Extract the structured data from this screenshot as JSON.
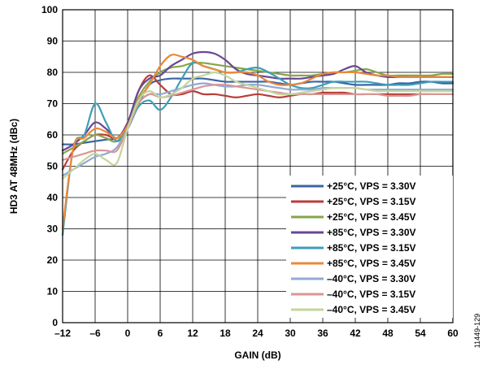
{
  "figure_id": "11449-129",
  "chart_data": {
    "type": "line",
    "xlabel": "GAIN (dB)",
    "ylabel": "HD3 AT 48MHz (dBc)",
    "xlim": [
      -12,
      60
    ],
    "ylim": [
      0,
      100
    ],
    "xticks": [
      -12,
      -6,
      0,
      6,
      12,
      18,
      24,
      30,
      36,
      42,
      48,
      54,
      60
    ],
    "xtick_labels": [
      "–12",
      "–6",
      "0",
      "6",
      "12",
      "18",
      "24",
      "30",
      "36",
      "42",
      "48",
      "54",
      "60"
    ],
    "yticks": [
      0,
      10,
      20,
      30,
      40,
      50,
      60,
      70,
      80,
      90,
      100
    ],
    "ytick_labels": [
      "0",
      "10",
      "20",
      "30",
      "40",
      "50",
      "60",
      "70",
      "80",
      "90",
      "100"
    ],
    "grid": true,
    "legend_position": "bottom-right",
    "series": [
      {
        "name": "+25°C, VPS = 3.30V",
        "color": "#3c64a5",
        "x": [
          -12,
          -10,
          -8,
          -6,
          -4,
          -2,
          0,
          2,
          4,
          6,
          8,
          10,
          12,
          14,
          16,
          18,
          20,
          22,
          24,
          26,
          28,
          30,
          32,
          34,
          36,
          38,
          40,
          42,
          44,
          46,
          48,
          50,
          52,
          54,
          56,
          58,
          60
        ],
        "y": [
          57,
          57,
          57.5,
          58,
          58.5,
          59,
          62,
          70,
          76,
          77.5,
          78,
          78,
          78,
          78,
          77.5,
          77,
          77,
          77,
          77,
          77,
          76.5,
          76,
          76.5,
          77,
          77,
          77,
          76.5,
          76,
          76,
          76,
          76,
          76.5,
          76.5,
          77,
          77,
          76.5,
          76.5
        ]
      },
      {
        "name": "+25°C, VPS = 3.15V",
        "color": "#b83d3a",
        "x": [
          -12,
          -10,
          -8,
          -6,
          -4,
          -2,
          0,
          2,
          4,
          6,
          8,
          10,
          12,
          14,
          16,
          18,
          20,
          22,
          24,
          26,
          28,
          30,
          32,
          34,
          36,
          38,
          40,
          42,
          44,
          46,
          48,
          50,
          52,
          54,
          56,
          58,
          60
        ],
        "y": [
          49,
          55,
          58,
          60,
          60,
          59,
          63,
          74,
          79,
          76,
          73,
          73,
          74,
          73,
          73,
          72.5,
          72,
          72.5,
          73,
          72.5,
          72,
          72.5,
          73,
          73,
          73.5,
          73.5,
          73.5,
          73,
          73,
          73,
          73,
          73,
          73,
          73,
          73,
          73,
          73
        ]
      },
      {
        "name": "+25°C, VPS = 3.45V",
        "color": "#85a64a",
        "x": [
          -12,
          -10,
          -8,
          -6,
          -4,
          -2,
          0,
          2,
          4,
          6,
          8,
          10,
          12,
          14,
          16,
          18,
          20,
          22,
          24,
          26,
          28,
          30,
          32,
          34,
          36,
          38,
          40,
          42,
          44,
          46,
          48,
          50,
          52,
          54,
          56,
          58,
          60
        ],
        "y": [
          54,
          56,
          58,
          60,
          59,
          58,
          63,
          72,
          77,
          80,
          81.5,
          82,
          83,
          83,
          82.5,
          82,
          81.5,
          81,
          80.5,
          80,
          79.5,
          79,
          79,
          79,
          79.5,
          80,
          80,
          80.5,
          81,
          80,
          79,
          79,
          79,
          79,
          79,
          79.5,
          79.5
        ]
      },
      {
        "name": "+85°C, VPS = 3.30V",
        "color": "#6a4794",
        "x": [
          -12,
          -10,
          -8,
          -6,
          -4,
          -2,
          0,
          2,
          4,
          6,
          8,
          10,
          12,
          14,
          16,
          18,
          20,
          22,
          24,
          26,
          28,
          30,
          32,
          34,
          36,
          38,
          40,
          42,
          44,
          46,
          48,
          50,
          52,
          54,
          56,
          58,
          60
        ],
        "y": [
          55,
          57,
          60,
          64,
          62,
          59,
          64,
          74,
          78,
          79,
          82,
          84,
          86,
          86.5,
          86,
          84,
          81,
          79.5,
          79,
          78.5,
          78,
          78,
          78,
          78.5,
          79,
          79.5,
          81,
          82,
          80,
          79,
          78.5,
          78.5,
          78.5,
          78.5,
          78.5,
          78.5,
          78.5
        ]
      },
      {
        "name": "+85°C, VPS = 3.15V",
        "color": "#3d9fb8",
        "x": [
          -12,
          -10,
          -8,
          -6,
          -4,
          -2,
          0,
          2,
          4,
          6,
          8,
          10,
          12,
          14,
          16,
          18,
          20,
          22,
          24,
          26,
          28,
          30,
          32,
          34,
          36,
          38,
          40,
          42,
          44,
          46,
          48,
          50,
          52,
          54,
          56,
          58,
          60
        ],
        "y": [
          28,
          56,
          60,
          70,
          64,
          58,
          62,
          69,
          71,
          68,
          72,
          78,
          83,
          82,
          81,
          80,
          80,
          81,
          81.5,
          80,
          78,
          76,
          75,
          75,
          76,
          77,
          77,
          77,
          77,
          76.5,
          76,
          76,
          76,
          76.5,
          77,
          77,
          77
        ]
      },
      {
        "name": "+85°C, VPS = 3.45V",
        "color": "#e9893a",
        "x": [
          -12,
          -10,
          -8,
          -6,
          -4,
          -2,
          0,
          2,
          4,
          6,
          8,
          10,
          12,
          14,
          16,
          18,
          20,
          22,
          24,
          26,
          28,
          30,
          32,
          34,
          36,
          38,
          40,
          42,
          44,
          46,
          48,
          50,
          52,
          54,
          56,
          58,
          60
        ],
        "y": [
          30,
          56,
          59,
          62,
          61,
          59,
          63,
          71,
          76,
          82,
          85.5,
          85,
          84,
          82,
          81,
          80,
          80,
          80,
          79,
          77,
          76,
          76,
          76.5,
          78,
          79.5,
          80,
          80,
          80,
          79.5,
          79,
          79,
          78.5,
          78.5,
          78.5,
          78.5,
          78.5,
          78.5
        ]
      },
      {
        "name": "–40°C, VPS = 3.30V",
        "color": "#93a9d6",
        "x": [
          -12,
          -10,
          -8,
          -6,
          -4,
          -2,
          0,
          2,
          4,
          6,
          8,
          10,
          12,
          14,
          16,
          18,
          20,
          22,
          24,
          26,
          28,
          30,
          32,
          34,
          36,
          38,
          40,
          42,
          44,
          46,
          48,
          50,
          52,
          54,
          56,
          58,
          60
        ],
        "y": [
          47,
          49,
          51,
          53,
          54,
          56,
          62,
          70,
          73,
          73,
          74,
          75,
          76,
          76.5,
          76,
          75.5,
          75.5,
          76,
          76,
          75.5,
          75,
          74.5,
          74.5,
          74.5,
          75,
          75,
          75,
          75,
          74.5,
          74.5,
          74.5,
          74.5,
          74.5,
          74.5,
          74.5,
          74.5,
          74.5
        ]
      },
      {
        "name": "–40°C, VPS = 3.15V",
        "color": "#d99795",
        "x": [
          -12,
          -10,
          -8,
          -6,
          -4,
          -2,
          0,
          2,
          4,
          6,
          8,
          10,
          12,
          14,
          16,
          18,
          20,
          22,
          24,
          26,
          28,
          30,
          32,
          34,
          36,
          38,
          40,
          42,
          44,
          46,
          48,
          50,
          52,
          54,
          56,
          58,
          60
        ],
        "y": [
          52,
          53,
          54,
          55,
          55,
          55,
          62,
          70,
          73,
          72,
          72.5,
          73.5,
          74.5,
          75.5,
          76,
          76,
          75.5,
          75,
          74.5,
          74,
          73.5,
          73,
          73,
          73,
          73,
          73,
          73,
          73,
          73,
          73,
          72.5,
          72.5,
          72.5,
          73,
          73,
          73,
          73
        ]
      },
      {
        "name": "–40°C, VPS = 3.45V",
        "color": "#c3d69b",
        "x": [
          -12,
          -10,
          -8,
          -6,
          -4,
          -2,
          0,
          2,
          4,
          6,
          8,
          10,
          12,
          14,
          16,
          18,
          20,
          22,
          24,
          26,
          28,
          30,
          32,
          34,
          36,
          38,
          40,
          42,
          44,
          46,
          48,
          50,
          52,
          54,
          56,
          58,
          60
        ],
        "y": [
          46,
          49,
          52,
          54,
          52,
          51,
          62,
          71,
          74,
          72,
          73,
          75,
          78,
          79,
          80,
          79,
          77,
          76,
          75,
          74,
          73,
          73,
          73.5,
          74,
          74.5,
          75,
          75,
          75,
          74.5,
          74,
          74,
          74,
          74,
          74,
          74,
          74,
          74
        ]
      }
    ]
  }
}
